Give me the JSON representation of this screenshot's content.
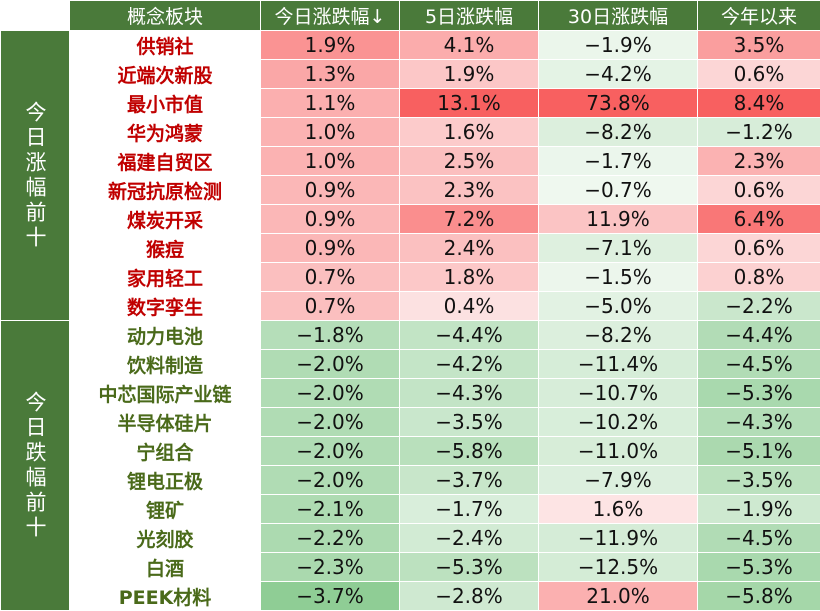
{
  "colors": {
    "header_bg": "#4a7a3a",
    "header_text": "#ffffff",
    "up_name": "#c00000",
    "down_name": "#4a6a1a",
    "positive_scale": [
      "#fdf0f0",
      "#f86060"
    ],
    "negative_scale": [
      "#f4faf4",
      "#8fcd95"
    ]
  },
  "headers": [
    "概念板块",
    "今日涨跌幅↓",
    "5日涨跌幅",
    "30日涨跌幅",
    "今年以来"
  ],
  "groups": [
    {
      "label": "今日涨幅前十",
      "direction": "up",
      "rows": [
        {
          "name": "供销社",
          "values": [
            "1.9%",
            "4.1%",
            "−1.9%",
            "3.5%"
          ]
        },
        {
          "name": "近端次新股",
          "values": [
            "1.3%",
            "1.9%",
            "−4.2%",
            "0.6%"
          ]
        },
        {
          "name": "最小市值",
          "values": [
            "1.1%",
            "13.1%",
            "73.8%",
            "8.4%"
          ]
        },
        {
          "name": "华为鸿蒙",
          "values": [
            "1.0%",
            "1.6%",
            "−8.2%",
            "−1.2%"
          ]
        },
        {
          "name": "福建自贸区",
          "values": [
            "1.0%",
            "2.5%",
            "−1.7%",
            "2.3%"
          ]
        },
        {
          "name": "新冠抗原检测",
          "values": [
            "0.9%",
            "2.3%",
            "−0.7%",
            "0.6%"
          ]
        },
        {
          "name": "煤炭开采",
          "values": [
            "0.9%",
            "7.2%",
            "11.9%",
            "6.4%"
          ]
        },
        {
          "name": "猴痘",
          "values": [
            "0.9%",
            "2.4%",
            "−7.1%",
            "0.6%"
          ]
        },
        {
          "name": "家用轻工",
          "values": [
            "0.7%",
            "1.8%",
            "−1.5%",
            "0.8%"
          ]
        },
        {
          "name": "数字孪生",
          "values": [
            "0.7%",
            "0.4%",
            "−5.0%",
            "−2.2%"
          ]
        }
      ]
    },
    {
      "label": "今日跌幅前十",
      "direction": "down",
      "rows": [
        {
          "name": "动力电池",
          "values": [
            "−1.8%",
            "−4.4%",
            "−8.2%",
            "−4.4%"
          ]
        },
        {
          "name": "饮料制造",
          "values": [
            "−2.0%",
            "−4.2%",
            "−11.4%",
            "−4.5%"
          ]
        },
        {
          "name": "中芯国际产业链",
          "values": [
            "−2.0%",
            "−4.3%",
            "−10.7%",
            "−5.3%"
          ]
        },
        {
          "name": "半导体硅片",
          "values": [
            "−2.0%",
            "−3.5%",
            "−10.2%",
            "−4.3%"
          ]
        },
        {
          "name": "宁组合",
          "values": [
            "−2.0%",
            "−5.8%",
            "−11.0%",
            "−5.1%"
          ]
        },
        {
          "name": "锂电正极",
          "values": [
            "−2.0%",
            "−3.7%",
            "−7.9%",
            "−3.5%"
          ]
        },
        {
          "name": "锂矿",
          "values": [
            "−2.1%",
            "−1.7%",
            "1.6%",
            "−1.9%"
          ]
        },
        {
          "name": "光刻胶",
          "values": [
            "−2.2%",
            "−2.4%",
            "−11.9%",
            "−4.5%"
          ]
        },
        {
          "name": "白酒",
          "values": [
            "−2.3%",
            "−5.3%",
            "−12.5%",
            "−5.3%"
          ]
        },
        {
          "name": "PEEK材料",
          "values": [
            "−3.7%",
            "−2.8%",
            "21.0%",
            "−5.8%"
          ]
        }
      ]
    }
  ],
  "chart_data": {
    "type": "table",
    "columns": [
      "概念板块",
      "今日涨跌幅",
      "5日涨跌幅",
      "30日涨跌幅",
      "今年以来"
    ],
    "sort": "今日涨跌幅 descending",
    "row_groups": [
      "今日涨幅前十",
      "今日跌幅前十"
    ],
    "rows": [
      [
        "供销社",
        1.9,
        4.1,
        -1.9,
        3.5
      ],
      [
        "近端次新股",
        1.3,
        1.9,
        -4.2,
        0.6
      ],
      [
        "最小市值",
        1.1,
        13.1,
        73.8,
        8.4
      ],
      [
        "华为鸿蒙",
        1.0,
        1.6,
        -8.2,
        -1.2
      ],
      [
        "福建自贸区",
        1.0,
        2.5,
        -1.7,
        2.3
      ],
      [
        "新冠抗原检测",
        0.9,
        2.3,
        -0.7,
        0.6
      ],
      [
        "煤炭开采",
        0.9,
        7.2,
        11.9,
        6.4
      ],
      [
        "猴痘",
        0.9,
        2.4,
        -7.1,
        0.6
      ],
      [
        "家用轻工",
        0.7,
        1.8,
        -1.5,
        0.8
      ],
      [
        "数字孪生",
        0.7,
        0.4,
        -5.0,
        -2.2
      ],
      [
        "动力电池",
        -1.8,
        -4.4,
        -8.2,
        -4.4
      ],
      [
        "饮料制造",
        -2.0,
        -4.2,
        -11.4,
        -4.5
      ],
      [
        "中芯国际产业链",
        -2.0,
        -4.3,
        -10.7,
        -5.3
      ],
      [
        "半导体硅片",
        -2.0,
        -3.5,
        -10.2,
        -4.3
      ],
      [
        "宁组合",
        -2.0,
        -5.8,
        -11.0,
        -5.1
      ],
      [
        "锂电正极",
        -2.0,
        -3.7,
        -7.9,
        -3.5
      ],
      [
        "锂矿",
        -2.1,
        -1.7,
        1.6,
        -1.9
      ],
      [
        "光刻胶",
        -2.2,
        -2.4,
        -11.9,
        -4.5
      ],
      [
        "白酒",
        -2.3,
        -5.3,
        -12.5,
        -5.3
      ],
      [
        "PEEK材料",
        -3.7,
        -2.8,
        21.0,
        -5.8
      ]
    ]
  }
}
